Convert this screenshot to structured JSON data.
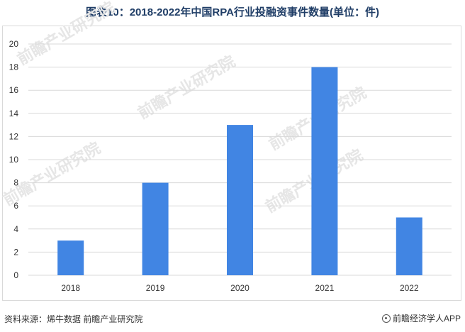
{
  "title": "图表10：2018-2022年中国RPA行业投融资事件数量(单位：件)",
  "source": "资料来源：烯牛数据 前瞻产业研究院",
  "brand": "前瞻经济学人APP",
  "brand_icon": "qianzhan-logo-icon",
  "watermark": "前瞻产业研究院",
  "colors": {
    "bar": "#4185e3",
    "grid": "#d9d9d9",
    "title": "#1f3d66"
  },
  "chart_data": {
    "type": "bar",
    "categories": [
      "2018",
      "2019",
      "2020",
      "2021",
      "2022"
    ],
    "values": [
      3,
      8,
      13,
      18,
      5
    ],
    "title": "图表10：2018-2022年中国RPA行业投融资事件数量(单位：件)",
    "xlabel": "",
    "ylabel": "",
    "ylim": [
      0,
      20
    ],
    "yticks": [
      "0",
      "2",
      "4",
      "6",
      "8",
      "10",
      "12",
      "14",
      "16",
      "18",
      "20"
    ],
    "grid": true,
    "legend": "none"
  }
}
